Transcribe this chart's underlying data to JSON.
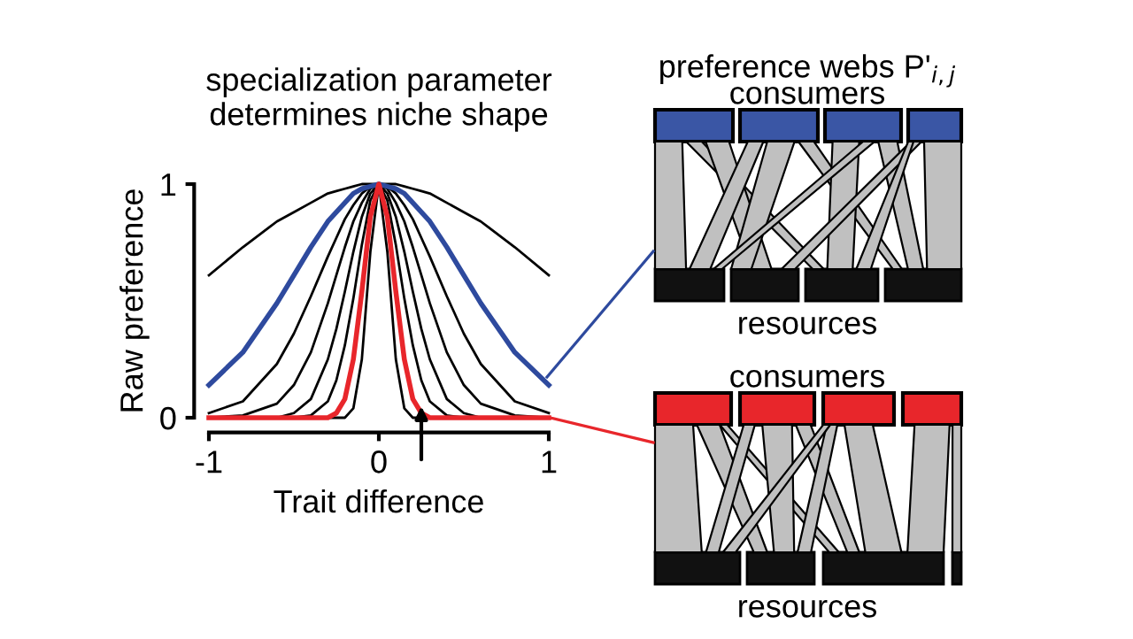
{
  "chart_data": {
    "type": "line",
    "title": "specialization parameter\ndetermines niche shape",
    "xlabel": "Trait difference",
    "ylabel": "Raw preference",
    "x": [
      -1,
      -0.8,
      -0.6,
      -0.5,
      -0.4,
      -0.3,
      -0.25,
      -0.2,
      -0.15,
      -0.1,
      -0.05,
      0,
      0.05,
      0.1,
      0.15,
      0.2,
      0.25,
      0.3,
      0.4,
      0.5,
      0.6,
      0.8,
      1
    ],
    "series": [
      {
        "color": "#000000",
        "values": [
          0.61,
          0.73,
          0.84,
          0.88,
          0.92,
          0.96,
          0.97,
          0.98,
          0.99,
          1.0,
          1.0,
          1.0,
          1.0,
          1.0,
          0.99,
          0.98,
          0.97,
          0.96,
          0.92,
          0.88,
          0.84,
          0.73,
          0.61
        ]
      },
      {
        "color": "#2e4a9e",
        "values": [
          0.14,
          0.28,
          0.49,
          0.61,
          0.73,
          0.84,
          0.88,
          0.92,
          0.96,
          0.98,
          0.99,
          1.0,
          0.99,
          0.98,
          0.96,
          0.92,
          0.88,
          0.84,
          0.73,
          0.61,
          0.49,
          0.28,
          0.14
        ]
      },
      {
        "color": "#000000",
        "values": [
          0.02,
          0.07,
          0.23,
          0.36,
          0.52,
          0.69,
          0.77,
          0.85,
          0.91,
          0.96,
          0.99,
          1.0,
          0.99,
          0.96,
          0.91,
          0.85,
          0.77,
          0.69,
          0.52,
          0.36,
          0.23,
          0.07,
          0.02
        ]
      },
      {
        "color": "#000000",
        "values": [
          0.0,
          0.01,
          0.06,
          0.14,
          0.28,
          0.49,
          0.61,
          0.73,
          0.84,
          0.92,
          0.98,
          1.0,
          0.98,
          0.92,
          0.84,
          0.73,
          0.61,
          0.49,
          0.28,
          0.14,
          0.06,
          0.01,
          0.0
        ]
      },
      {
        "color": "#000000",
        "values": [
          0.0,
          0.0,
          0.0,
          0.02,
          0.08,
          0.25,
          0.38,
          0.54,
          0.71,
          0.86,
          0.96,
          1.0,
          0.96,
          0.86,
          0.71,
          0.54,
          0.38,
          0.25,
          0.08,
          0.02,
          0.0,
          0.0,
          0.0
        ]
      },
      {
        "color": "#000000",
        "values": [
          0.0,
          0.0,
          0.0,
          0.0,
          0.01,
          0.07,
          0.16,
          0.31,
          0.51,
          0.74,
          0.93,
          1.0,
          0.93,
          0.74,
          0.51,
          0.31,
          0.16,
          0.07,
          0.01,
          0.0,
          0.0,
          0.0,
          0.0
        ]
      },
      {
        "color": "#000000",
        "values": [
          0.0,
          0.0,
          0.0,
          0.0,
          0.0,
          0.0,
          0.0,
          0.0,
          0.04,
          0.25,
          0.71,
          1.0,
          0.71,
          0.25,
          0.04,
          0.0,
          0.0,
          0.0,
          0.0,
          0.0,
          0.0,
          0.0,
          0.0
        ]
      },
      {
        "color": "#e8262b",
        "values": [
          0.0,
          0.0,
          0.0,
          0.0,
          0.0,
          0.0,
          0.02,
          0.08,
          0.25,
          0.54,
          0.86,
          1.0,
          0.86,
          0.54,
          0.25,
          0.08,
          0.02,
          0.0,
          0.0,
          0.0,
          0.0,
          0.0,
          0.0
        ]
      }
    ],
    "xlim": [
      -1,
      1
    ],
    "ylim": [
      0,
      1
    ],
    "xticks": [
      -1,
      0,
      1
    ],
    "yticks": [
      0,
      1
    ],
    "grid": false,
    "legend": false,
    "annotations": [
      "preference webs P'$_{i,j}$",
      "consumers",
      "resources",
      "consumers",
      "resources"
    ]
  }
}
